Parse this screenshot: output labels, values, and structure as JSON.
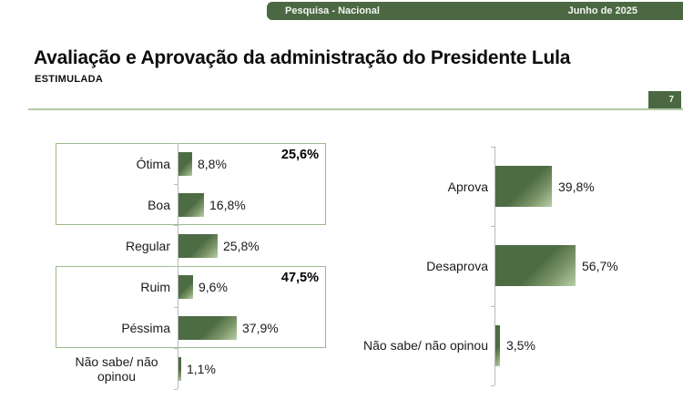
{
  "header": {
    "left_label": "Pesquisa - Nacional",
    "right_label": "Junho de 2025"
  },
  "title": "Avaliação e Aprovação da administração do Presidente Lula",
  "subtitle": "ESTIMULADA",
  "page_number": "7",
  "colors": {
    "brand_green": "#4b6843",
    "bar_dark": "#4d6c44",
    "bar_light": "#b9d0a8",
    "group_box_border": "#9cba8c",
    "divider": "#b2c8a5",
    "axis": "#b9b9b9",
    "text": "#1a1a1a"
  },
  "chart_data": [
    {
      "type": "bar",
      "orientation": "horizontal",
      "unit": "%",
      "categories": [
        "Ótima",
        "Boa",
        "Regular",
        "Ruim",
        "Péssima",
        "Não sabe/ não opinou"
      ],
      "values": [
        8.8,
        16.8,
        25.8,
        9.6,
        37.9,
        1.1
      ],
      "value_labels": [
        "8,8%",
        "16,8%",
        "25,8%",
        "9,6%",
        "37,9%",
        "1,1%"
      ],
      "groups": [
        {
          "label": "25,6%",
          "from": 0,
          "to": 1
        },
        {
          "label": "47,5%",
          "from": 3,
          "to": 4
        }
      ],
      "legend": "none",
      "grid": "off"
    },
    {
      "type": "bar",
      "orientation": "horizontal",
      "unit": "%",
      "categories": [
        "Aprova",
        "Desaprova",
        "Não sabe/ não opinou"
      ],
      "values": [
        39.8,
        56.7,
        3.5
      ],
      "value_labels": [
        "39,8%",
        "56,7%",
        "3,5%"
      ],
      "groups": [],
      "legend": "none",
      "grid": "off"
    }
  ]
}
